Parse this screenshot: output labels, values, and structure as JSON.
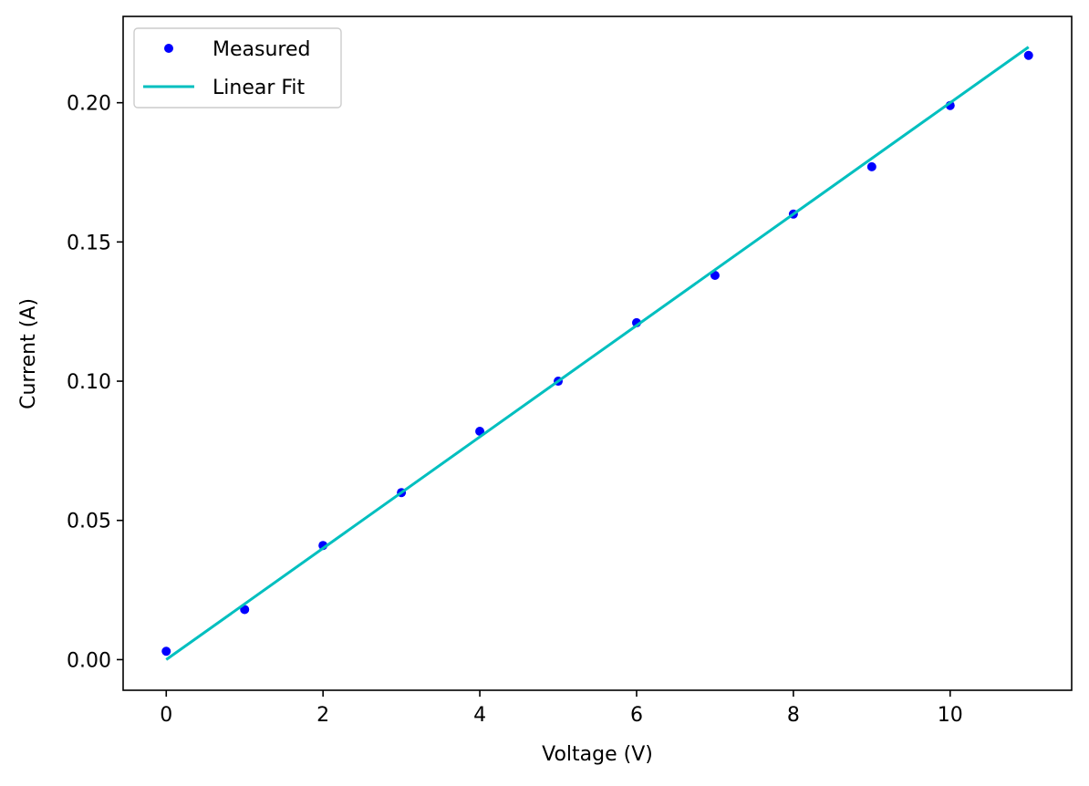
{
  "chart_data": {
    "type": "scatter",
    "title": "",
    "xlabel": "Voltage (V)",
    "ylabel": "Current (A)",
    "xlim": [
      -0.55,
      11.55
    ],
    "ylim": [
      -0.011,
      0.231
    ],
    "x_ticks": [
      0,
      2,
      4,
      6,
      8,
      10
    ],
    "x_tick_labels": [
      "0",
      "2",
      "4",
      "6",
      "8",
      "10"
    ],
    "y_ticks": [
      0.0,
      0.05,
      0.1,
      0.15,
      0.2
    ],
    "y_tick_labels": [
      "0.00",
      "0.05",
      "0.10",
      "0.15",
      "0.20"
    ],
    "grid": false,
    "legend_position": "top-left",
    "series": [
      {
        "name": "Measured",
        "kind": "markers",
        "color": "#0000ff",
        "x": [
          0,
          1,
          2,
          3,
          4,
          5,
          6,
          7,
          8,
          9,
          10,
          11
        ],
        "y": [
          0.003,
          0.018,
          0.041,
          0.06,
          0.082,
          0.1,
          0.121,
          0.138,
          0.16,
          0.177,
          0.199,
          0.217
        ]
      },
      {
        "name": "Linear Fit",
        "kind": "line",
        "color": "#00bfbf",
        "x": [
          0,
          11
        ],
        "y": [
          0.0,
          0.22
        ]
      }
    ]
  }
}
